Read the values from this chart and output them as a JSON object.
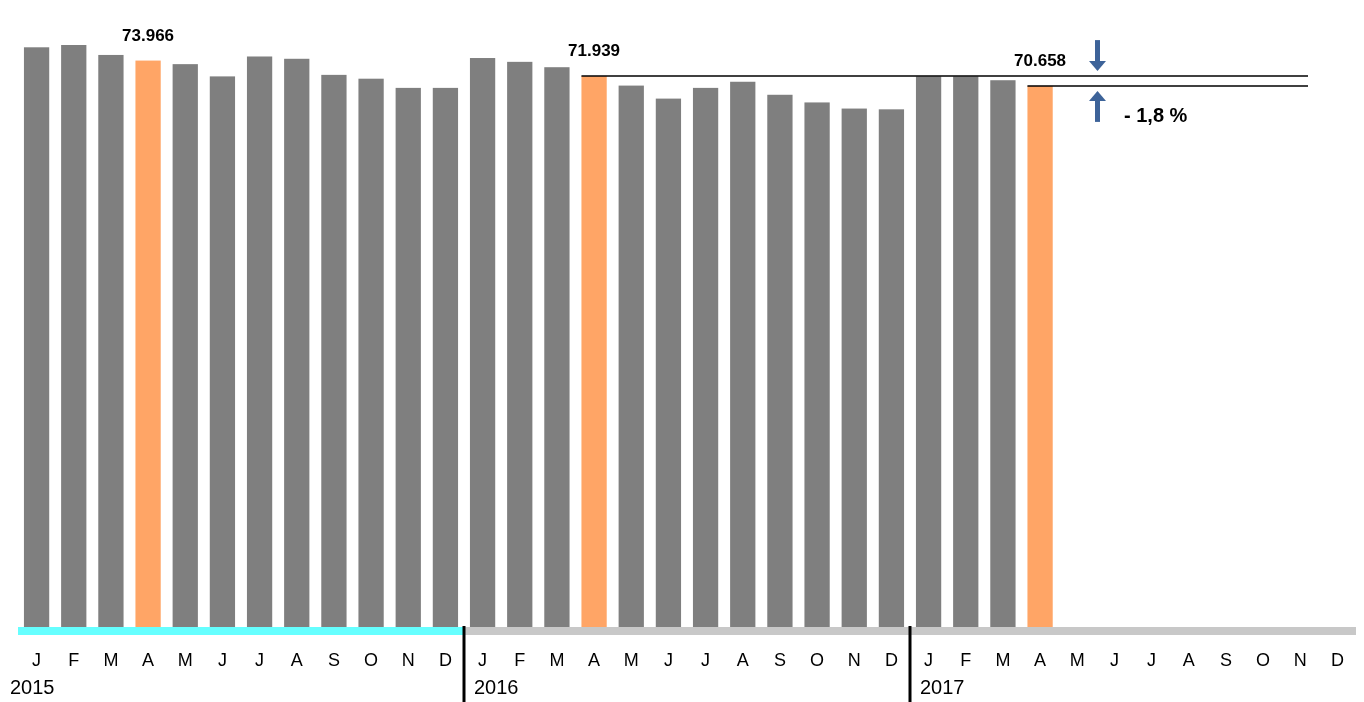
{
  "chart_data": {
    "type": "bar",
    "categories": [
      "J",
      "F",
      "M",
      "A",
      "M",
      "J",
      "J",
      "A",
      "S",
      "O",
      "N",
      "D",
      "J",
      "F",
      "M",
      "A",
      "M",
      "J",
      "J",
      "A",
      "S",
      "O",
      "N",
      "D",
      "J",
      "F",
      "M",
      "A",
      "M",
      "J",
      "J",
      "A",
      "S",
      "O",
      "N",
      "D"
    ],
    "values": [
      75700,
      76000,
      74700,
      73966,
      73500,
      71900,
      74500,
      74200,
      72100,
      71600,
      70400,
      70400,
      74300,
      73800,
      73100,
      71939,
      70700,
      69000,
      70400,
      71200,
      69500,
      68500,
      67700,
      67600,
      71900,
      71900,
      71400,
      70658,
      null,
      null,
      null,
      null,
      null,
      null,
      null,
      null
    ],
    "colors": [
      "#7f7f7f",
      "#7f7f7f",
      "#7f7f7f",
      "#ffa566",
      "#7f7f7f",
      "#7f7f7f",
      "#7f7f7f",
      "#7f7f7f",
      "#7f7f7f",
      "#7f7f7f",
      "#7f7f7f",
      "#7f7f7f",
      "#7f7f7f",
      "#7f7f7f",
      "#7f7f7f",
      "#ffa566",
      "#7f7f7f",
      "#7f7f7f",
      "#7f7f7f",
      "#7f7f7f",
      "#7f7f7f",
      "#7f7f7f",
      "#7f7f7f",
      "#7f7f7f",
      "#7f7f7f",
      "#7f7f7f",
      "#7f7f7f",
      "#ffa566",
      null,
      null,
      null,
      null,
      null,
      null,
      null,
      null
    ],
    "value_labels": [
      null,
      null,
      null,
      "73.966",
      null,
      null,
      null,
      null,
      null,
      null,
      null,
      null,
      null,
      null,
      null,
      "71.939",
      null,
      null,
      null,
      null,
      null,
      null,
      null,
      null,
      null,
      null,
      null,
      "70.658",
      null,
      null,
      null,
      null,
      null,
      null,
      null,
      null
    ],
    "ref_lines": [
      {
        "axis": "y",
        "value": 71939,
        "color": "#000000"
      },
      {
        "axis": "y",
        "value": 70658,
        "color": "#000000"
      }
    ],
    "annotations": [
      "2015",
      "2016",
      "2017",
      "- 1,8 %"
    ]
  }
}
